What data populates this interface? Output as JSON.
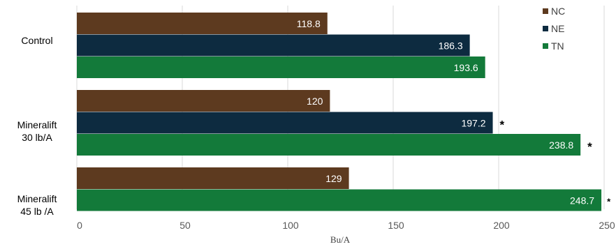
{
  "chart_data": {
    "type": "bar",
    "orientation": "horizontal",
    "categories": [
      [
        "Control"
      ],
      [
        "Mineralift",
        "30 lb/A"
      ],
      [
        "Mineralift",
        "45 lb /A"
      ]
    ],
    "series": [
      {
        "name": "NC",
        "color": "#5d3a1f",
        "values": [
          118.8,
          120,
          129
        ]
      },
      {
        "name": "NE",
        "color": "#0d2b40",
        "values": [
          186.3,
          197.2,
          null
        ]
      },
      {
        "name": "TN",
        "color": "#137a3a",
        "values": [
          193.6,
          238.8,
          248.7
        ]
      }
    ],
    "data_labels": [
      [
        "118.8",
        "120",
        "129"
      ],
      [
        "186.3",
        "197.2",
        ""
      ],
      [
        "193.6",
        "238.8",
        "248.7"
      ]
    ],
    "significance_markers": [
      [
        "",
        "",
        ""
      ],
      [
        "",
        "*",
        ""
      ],
      [
        "",
        "*",
        "*"
      ]
    ],
    "xlabel": "Bu/A",
    "ylabel": "",
    "xlim": [
      0,
      250
    ],
    "xticks": [
      0,
      50,
      100,
      150,
      200,
      250
    ],
    "grid": true,
    "legend_position": "top-right"
  }
}
